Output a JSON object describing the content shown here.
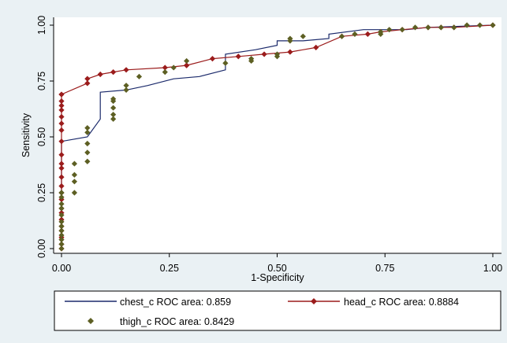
{
  "colors": {
    "background": "#eaf1f4",
    "plot_background": "#ffffff",
    "chest": "#1b2a6b",
    "head": "#9b1c1c",
    "thigh": "#5d5f23"
  },
  "chart_data": {
    "type": "line",
    "title": "",
    "xlabel": "1-Specificity",
    "ylabel": "Sensitivity",
    "xlim": [
      0,
      1
    ],
    "ylim": [
      0,
      1
    ],
    "xticks": [
      "0.00",
      "0.25",
      "0.50",
      "0.75",
      "1.00"
    ],
    "yticks": [
      "0.00",
      "0.25",
      "0.50",
      "0.75",
      "1.00"
    ],
    "grid": false,
    "legend_position": "bottom",
    "legend": {
      "chest": "chest_c ROC area: 0.859",
      "head": "head_c ROC area: 0.8884",
      "thigh": "thigh_c ROC area: 0.8429"
    },
    "series": [
      {
        "name": "chest_c ROC area: 0.859",
        "style": "line",
        "x": [
          0,
          0,
          0,
          0.06,
          0.06,
          0.09,
          0.09,
          0.15,
          0.2,
          0.26,
          0.32,
          0.38,
          0.38,
          0.45,
          0.5,
          0.5,
          0.56,
          0.62,
          0.62,
          0.7,
          0.8,
          0.85,
          1.0
        ],
        "y": [
          0.0,
          0.48,
          0.48,
          0.5,
          0.5,
          0.58,
          0.7,
          0.71,
          0.73,
          0.76,
          0.77,
          0.8,
          0.87,
          0.89,
          0.91,
          0.93,
          0.93,
          0.94,
          0.96,
          0.98,
          0.98,
          0.99,
          1.0
        ]
      },
      {
        "name": "head_c ROC area: 0.8884",
        "style": "line-markers",
        "x": [
          0,
          0,
          0,
          0,
          0,
          0,
          0,
          0,
          0,
          0,
          0,
          0,
          0,
          0,
          0,
          0,
          0,
          0,
          0,
          0,
          0,
          0,
          0,
          0,
          0.06,
          0.06,
          0.09,
          0.12,
          0.15,
          0.24,
          0.29,
          0.29,
          0.35,
          0.41,
          0.47,
          0.53,
          0.59,
          0.65,
          0.71,
          0.74,
          0.79,
          0.85,
          0.88,
          0.91,
          1.0
        ],
        "y": [
          0.0,
          0.02,
          0.05,
          0.08,
          0.1,
          0.13,
          0.16,
          0.18,
          0.22,
          0.25,
          0.28,
          0.32,
          0.36,
          0.38,
          0.42,
          0.48,
          0.53,
          0.56,
          0.59,
          0.62,
          0.64,
          0.66,
          0.69,
          0.69,
          0.74,
          0.76,
          0.78,
          0.79,
          0.8,
          0.81,
          0.82,
          0.82,
          0.85,
          0.86,
          0.87,
          0.88,
          0.9,
          0.95,
          0.96,
          0.97,
          0.98,
          0.99,
          0.99,
          0.99,
          1.0
        ]
      },
      {
        "name": "thigh_c ROC area: 0.8429",
        "style": "markers",
        "x": [
          0,
          0,
          0,
          0,
          0,
          0,
          0,
          0,
          0,
          0,
          0,
          0,
          0,
          0.03,
          0.03,
          0.03,
          0.03,
          0.06,
          0.06,
          0.06,
          0.06,
          0.06,
          0.12,
          0.12,
          0.12,
          0.12,
          0.12,
          0.15,
          0.15,
          0.18,
          0.24,
          0.26,
          0.29,
          0.38,
          0.44,
          0.44,
          0.5,
          0.5,
          0.53,
          0.53,
          0.56,
          0.65,
          0.68,
          0.74,
          0.74,
          0.76,
          0.79,
          0.82,
          0.85,
          0.88,
          0.91,
          0.94,
          0.97,
          1.0
        ],
        "y": [
          0.0,
          0.02,
          0.04,
          0.06,
          0.08,
          0.1,
          0.12,
          0.15,
          0.18,
          0.2,
          0.23,
          0.25,
          0.25,
          0.25,
          0.3,
          0.33,
          0.38,
          0.39,
          0.43,
          0.47,
          0.52,
          0.54,
          0.58,
          0.6,
          0.63,
          0.66,
          0.67,
          0.71,
          0.73,
          0.77,
          0.79,
          0.81,
          0.84,
          0.83,
          0.84,
          0.85,
          0.86,
          0.87,
          0.93,
          0.94,
          0.95,
          0.95,
          0.96,
          0.96,
          0.97,
          0.98,
          0.98,
          0.99,
          0.99,
          0.99,
          0.99,
          1.0,
          1.0,
          1.0
        ]
      }
    ]
  }
}
